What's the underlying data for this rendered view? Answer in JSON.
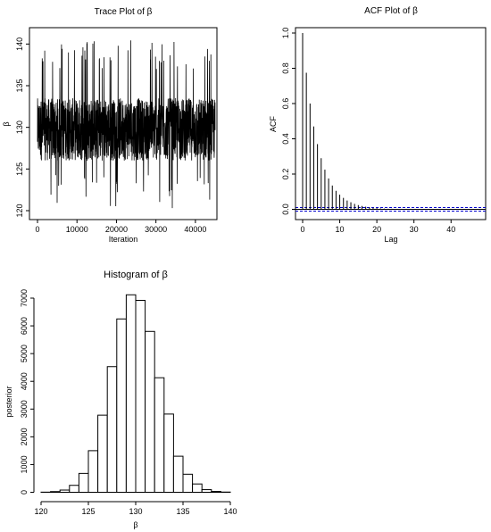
{
  "chart_data": [
    {
      "type": "line",
      "title": "Trace Plot of β",
      "xlabel": "Iteration",
      "ylabel": "β",
      "xlim": [
        0,
        45000
      ],
      "ylim": [
        120,
        141
      ],
      "x_ticks": [
        0,
        10000,
        20000,
        30000,
        40000
      ],
      "y_ticks": [
        120,
        125,
        130,
        135,
        140
      ],
      "n_iterations": 45000,
      "band": {
        "core_low": 126,
        "core_high": 133.5,
        "min": 120.3,
        "max": 140.5,
        "center": 130
      }
    },
    {
      "type": "bar",
      "title": "ACF Plot of β",
      "xlabel": "Lag",
      "ylabel": "ACF",
      "xlim": [
        0,
        48
      ],
      "ylim": [
        -0.02,
        1.0
      ],
      "x_ticks": [
        0,
        10,
        20,
        30,
        40
      ],
      "y_ticks": [
        0.0,
        0.2,
        0.4,
        0.6,
        0.8,
        1.0
      ],
      "lags": [
        0,
        1,
        2,
        3,
        4,
        5,
        6,
        7,
        8,
        9,
        10,
        11,
        12,
        13,
        14,
        15,
        16,
        17,
        18,
        19,
        20,
        21,
        22,
        23,
        24,
        25,
        26,
        27,
        28,
        29,
        30,
        31,
        32,
        33,
        34,
        35,
        36,
        37,
        38,
        39,
        40,
        41,
        42,
        43,
        44,
        45,
        46,
        47,
        48
      ],
      "values": [
        1.0,
        0.775,
        0.6,
        0.47,
        0.37,
        0.29,
        0.225,
        0.175,
        0.135,
        0.105,
        0.083,
        0.065,
        0.05,
        0.04,
        0.031,
        0.024,
        0.019,
        0.015,
        0.012,
        0.009,
        0.007,
        0.005,
        0.004,
        0.003,
        0.003,
        0.002,
        0.002,
        0.001,
        0.001,
        0.001,
        0.001,
        0.001,
        0.001,
        0.001,
        0.001,
        0.001,
        0.001,
        0.001,
        0.001,
        0.001,
        0.001,
        0.001,
        0.001,
        0.001,
        0.001,
        0.001,
        0.001,
        0.001,
        0.001
      ],
      "conf_bands": [
        0.01,
        -0.01
      ],
      "conf_color": "#0000cc"
    },
    {
      "type": "bar",
      "title": "Histogram of β",
      "xlabel": "β",
      "ylabel": "posterior",
      "xlim": [
        120,
        140
      ],
      "ylim": [
        0,
        7000
      ],
      "x_ticks": [
        120,
        125,
        130,
        135,
        140
      ],
      "y_ticks": [
        0,
        1000,
        2000,
        3000,
        4000,
        5000,
        6000,
        7000
      ],
      "bin_edges": [
        120,
        121,
        122,
        123,
        124,
        125,
        126,
        127,
        128,
        129,
        130,
        131,
        132,
        133,
        134,
        135,
        136,
        137,
        138,
        139,
        140
      ],
      "values": [
        5,
        25,
        80,
        250,
        680,
        1500,
        2780,
        4530,
        6250,
        7120,
        6920,
        5800,
        4130,
        2820,
        1300,
        650,
        300,
        95,
        30,
        8
      ]
    }
  ]
}
